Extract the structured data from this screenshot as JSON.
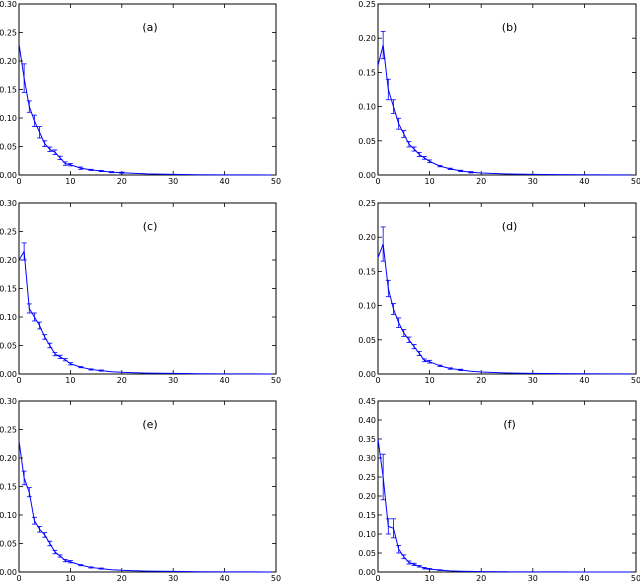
{
  "chart_data": [
    {
      "panel": "(a)",
      "type": "line",
      "xlim": [
        0,
        50
      ],
      "ylim": [
        0,
        0.3
      ],
      "xticks": [
        "0",
        "10",
        "20",
        "30",
        "40",
        "50"
      ],
      "yticks": [
        "0.00",
        "0.05",
        "0.10",
        "0.15",
        "0.20",
        "0.25",
        "0.30"
      ],
      "x": [
        0,
        1,
        2,
        3,
        4,
        5,
        6,
        7,
        8,
        9,
        10,
        12,
        14,
        16,
        18,
        20,
        25,
        30,
        35,
        40,
        45,
        49
      ],
      "y": [
        0.23,
        0.17,
        0.12,
        0.095,
        0.075,
        0.055,
        0.045,
        0.04,
        0.03,
        0.02,
        0.018,
        0.012,
        0.009,
        0.007,
        0.005,
        0.004,
        0.002,
        0.001,
        0.0005,
        0.0003,
        0.0002,
        0.0001
      ],
      "err": [
        0,
        0.025,
        0.01,
        0.01,
        0.01,
        0.005,
        0.004,
        0.004,
        0.003,
        0.003,
        0.002,
        0.002,
        0.001,
        0.001,
        0.001,
        0.001,
        0,
        0,
        0,
        0,
        0,
        0
      ]
    },
    {
      "panel": "(b)",
      "type": "line",
      "xlim": [
        0,
        50
      ],
      "ylim": [
        0,
        0.25
      ],
      "xticks": [
        "0",
        "10",
        "20",
        "30",
        "40",
        "50"
      ],
      "yticks": [
        "0.00",
        "0.05",
        "0.10",
        "0.15",
        "0.20",
        "0.25"
      ],
      "x": [
        0,
        1,
        2,
        3,
        4,
        5,
        6,
        7,
        8,
        9,
        10,
        12,
        14,
        16,
        18,
        20,
        25,
        30,
        35,
        40,
        45,
        49
      ],
      "y": [
        0.16,
        0.19,
        0.125,
        0.1,
        0.075,
        0.06,
        0.045,
        0.038,
        0.03,
        0.025,
        0.02,
        0.013,
        0.009,
        0.006,
        0.004,
        0.003,
        0.0015,
        0.001,
        0.0005,
        0.0003,
        0.0002,
        0.0001
      ],
      "err": [
        0,
        0.02,
        0.015,
        0.01,
        0.008,
        0.005,
        0.004,
        0.003,
        0.003,
        0.002,
        0.002,
        0.001,
        0.001,
        0.001,
        0.001,
        0,
        0,
        0,
        0,
        0,
        0,
        0
      ]
    },
    {
      "panel": "(c)",
      "type": "line",
      "xlim": [
        0,
        50
      ],
      "ylim": [
        0,
        0.3
      ],
      "xticks": [
        "0",
        "10",
        "20",
        "30",
        "40",
        "50"
      ],
      "yticks": [
        "0.00",
        "0.05",
        "0.10",
        "0.15",
        "0.20",
        "0.25",
        "0.30"
      ],
      "x": [
        0,
        1,
        2,
        3,
        4,
        5,
        6,
        7,
        8,
        9,
        10,
        12,
        14,
        16,
        18,
        20,
        25,
        30,
        35,
        40,
        45,
        49
      ],
      "y": [
        0.2,
        0.215,
        0.115,
        0.1,
        0.085,
        0.065,
        0.05,
        0.035,
        0.03,
        0.025,
        0.018,
        0.012,
        0.008,
        0.006,
        0.004,
        0.003,
        0.0015,
        0.001,
        0.0005,
        0.0003,
        0.0002,
        0.0001
      ],
      "err": [
        0,
        0.015,
        0.008,
        0.007,
        0.006,
        0.004,
        0.004,
        0.003,
        0.003,
        0.002,
        0.002,
        0.001,
        0.001,
        0.001,
        0,
        0,
        0,
        0,
        0,
        0,
        0,
        0
      ]
    },
    {
      "panel": "(d)",
      "type": "line",
      "xlim": [
        0,
        50
      ],
      "ylim": [
        0,
        0.25
      ],
      "xticks": [
        "0",
        "10",
        "20",
        "30",
        "40",
        "50"
      ],
      "yticks": [
        "0.00",
        "0.05",
        "0.10",
        "0.15",
        "0.20",
        "0.25"
      ],
      "x": [
        0,
        1,
        2,
        3,
        4,
        5,
        6,
        7,
        8,
        9,
        10,
        12,
        14,
        16,
        18,
        20,
        25,
        30,
        35,
        40,
        45,
        49
      ],
      "y": [
        0.17,
        0.19,
        0.125,
        0.095,
        0.075,
        0.06,
        0.05,
        0.04,
        0.03,
        0.02,
        0.018,
        0.012,
        0.008,
        0.006,
        0.004,
        0.003,
        0.0015,
        0.001,
        0.0005,
        0.0003,
        0.0002,
        0.0001
      ],
      "err": [
        0,
        0.025,
        0.012,
        0.008,
        0.007,
        0.005,
        0.004,
        0.003,
        0.003,
        0.002,
        0.002,
        0.001,
        0.001,
        0.001,
        0,
        0,
        0,
        0,
        0,
        0,
        0,
        0
      ]
    },
    {
      "panel": "(e)",
      "type": "line",
      "xlim": [
        0,
        50
      ],
      "ylim": [
        0,
        0.3
      ],
      "xticks": [
        "0",
        "10",
        "20",
        "30",
        "40",
        "50"
      ],
      "yticks": [
        "0.00",
        "0.05",
        "0.10",
        "0.15",
        "0.20",
        "0.25",
        "0.30"
      ],
      "x": [
        0,
        1,
        2,
        3,
        4,
        5,
        6,
        7,
        8,
        9,
        10,
        12,
        14,
        16,
        18,
        20,
        25,
        30,
        35,
        40,
        45,
        49
      ],
      "y": [
        0.23,
        0.165,
        0.14,
        0.09,
        0.075,
        0.065,
        0.05,
        0.035,
        0.028,
        0.02,
        0.018,
        0.012,
        0.008,
        0.006,
        0.004,
        0.003,
        0.0015,
        0.001,
        0.0005,
        0.0003,
        0.0002,
        0.0001
      ],
      "err": [
        0,
        0.012,
        0.008,
        0.006,
        0.005,
        0.004,
        0.004,
        0.003,
        0.002,
        0.002,
        0.002,
        0.001,
        0.001,
        0.001,
        0,
        0,
        0,
        0,
        0,
        0,
        0,
        0
      ]
    },
    {
      "panel": "(f)",
      "type": "line",
      "xlim": [
        0,
        50
      ],
      "ylim": [
        0,
        0.45
      ],
      "xticks": [
        "0",
        "10",
        "20",
        "30",
        "40",
        "50"
      ],
      "yticks": [
        "0.00",
        "0.05",
        "0.10",
        "0.15",
        "0.20",
        "0.25",
        "0.30",
        "0.35",
        "0.40",
        "0.45"
      ],
      "x": [
        0,
        1,
        2,
        3,
        4,
        5,
        6,
        7,
        8,
        9,
        10,
        12,
        14,
        16,
        18,
        20,
        25,
        30,
        35,
        40,
        45,
        49
      ],
      "y": [
        0.35,
        0.25,
        0.12,
        0.115,
        0.06,
        0.04,
        0.025,
        0.02,
        0.015,
        0.01,
        0.008,
        0.005,
        0.003,
        0.002,
        0.0015,
        0.001,
        0.0005,
        0.0003,
        0.0002,
        0.0001,
        0.0001,
        0.0001
      ],
      "err": [
        0,
        0.06,
        0.02,
        0.025,
        0.01,
        0.005,
        0.004,
        0.003,
        0.002,
        0.002,
        0.001,
        0.001,
        0,
        0,
        0,
        0,
        0,
        0,
        0,
        0,
        0,
        0
      ]
    }
  ]
}
